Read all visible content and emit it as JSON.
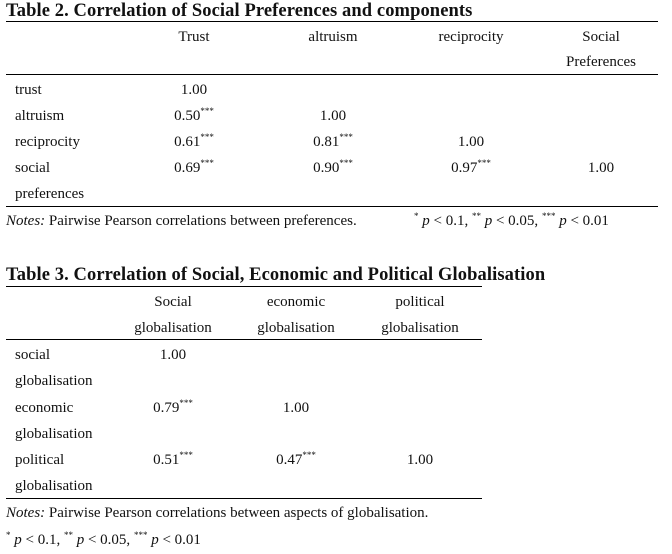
{
  "table2": {
    "title": "Table 2. Correlation of Social Preferences and components",
    "col_headers": [
      {
        "line1": "Trust",
        "line2": ""
      },
      {
        "line1": "altruism",
        "line2": ""
      },
      {
        "line1": "reciprocity",
        "line2": ""
      },
      {
        "line1": "Social",
        "line2": "Preferences"
      }
    ],
    "rows": [
      {
        "label1": "trust",
        "label2": "",
        "cells": [
          [
            "1.00",
            ""
          ],
          [
            "",
            ""
          ],
          [
            "",
            ""
          ],
          [
            "",
            ""
          ]
        ]
      },
      {
        "label1": "altruism",
        "label2": "",
        "cells": [
          [
            "0.50",
            "***"
          ],
          [
            "1.00",
            ""
          ],
          [
            "",
            ""
          ],
          [
            "",
            ""
          ]
        ]
      },
      {
        "label1": "reciprocity",
        "label2": "",
        "cells": [
          [
            "0.61",
            "***"
          ],
          [
            "0.81",
            "***"
          ],
          [
            "1.00",
            ""
          ],
          [
            "",
            ""
          ]
        ]
      },
      {
        "label1": "social",
        "label2": "preferences",
        "cells": [
          [
            "0.69",
            "***"
          ],
          [
            "0.90",
            "***"
          ],
          [
            "0.97",
            "***"
          ],
          [
            "1.00",
            ""
          ]
        ]
      }
    ],
    "notes": {
      "label": "Notes:",
      "text": " Pairwise Pearson correlations between preferences.",
      "sig1_star": "*",
      "sig1_text": " p < 0.1, ",
      "sig2_star": "**",
      "sig2_text": " p < 0.05, ",
      "sig3_star": "***",
      "sig3_text": " p < 0.01"
    }
  },
  "table3": {
    "title": "Table 3. Correlation of Social, Economic and Political Globalisation",
    "col_headers": [
      {
        "line1": "Social",
        "line2": "globalisation"
      },
      {
        "line1": "economic",
        "line2": "globalisation"
      },
      {
        "line1": "political",
        "line2": "globalisation"
      }
    ],
    "rows": [
      {
        "label1": "social",
        "label2": "globalisation",
        "cells": [
          [
            "1.00",
            ""
          ],
          [
            "",
            ""
          ],
          [
            "",
            ""
          ]
        ]
      },
      {
        "label1": "economic",
        "label2": "globalisation",
        "cells": [
          [
            "0.79",
            "***"
          ],
          [
            "1.00",
            ""
          ],
          [
            "",
            ""
          ]
        ]
      },
      {
        "label1": "political",
        "label2": "globalisation",
        "cells": [
          [
            "0.51",
            "***"
          ],
          [
            "0.47",
            "***"
          ],
          [
            "1.00",
            ""
          ]
        ]
      }
    ],
    "notes": {
      "label": "Notes:",
      "text": " Pairwise Pearson correlations between aspects of globalisation.",
      "sig1_star": "*",
      "sig1_text": " p < 0.1, ",
      "sig2_star": "**",
      "sig2_text": " p < 0.05, ",
      "sig3_star": "***",
      "sig3_text": " p < 0.01"
    }
  }
}
